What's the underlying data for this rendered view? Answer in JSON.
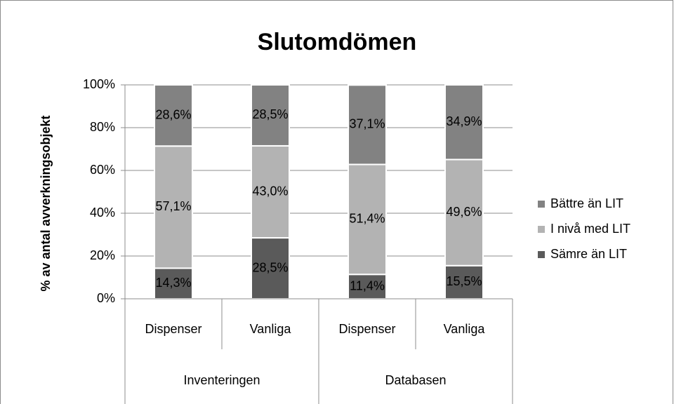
{
  "chart_data": {
    "type": "stacked_bar",
    "title": "Slutomdömen",
    "y_label": "% av antal avverkningsobjekt",
    "categories": [
      "Dispenser",
      "Vanliga",
      "Dispenser",
      "Vanliga"
    ],
    "groups": [
      "Inventeringen",
      "Databasen"
    ],
    "series": [
      {
        "name": "Sämre än LIT",
        "color": "#5a5a5a",
        "values": [
          14.3,
          28.5,
          11.4,
          15.5
        ],
        "value_labels": [
          "14,3%",
          "28,5%",
          "11,4%",
          "15,5%"
        ]
      },
      {
        "name": "I nivå med LIT",
        "color": "#b3b3b3",
        "values": [
          57.1,
          43.0,
          51.4,
          49.6
        ],
        "value_labels": [
          "57,1%",
          "43,0%",
          "51,4%",
          "49,6%"
        ]
      },
      {
        "name": "Bättre än LIT",
        "color": "#828282",
        "values": [
          28.6,
          28.5,
          37.1,
          34.9
        ],
        "value_labels": [
          "28,6%",
          "28,5%",
          "37,1%",
          "34,9%"
        ]
      }
    ],
    "ylim": [
      0,
      100
    ],
    "yticks": [
      {
        "value": 0,
        "label": "0%"
      },
      {
        "value": 20,
        "label": "20%"
      },
      {
        "value": 40,
        "label": "40%"
      },
      {
        "value": 60,
        "label": "60%"
      },
      {
        "value": 80,
        "label": "80%"
      },
      {
        "value": 100,
        "label": "100%"
      }
    ],
    "grid": true,
    "legend": "right"
  }
}
